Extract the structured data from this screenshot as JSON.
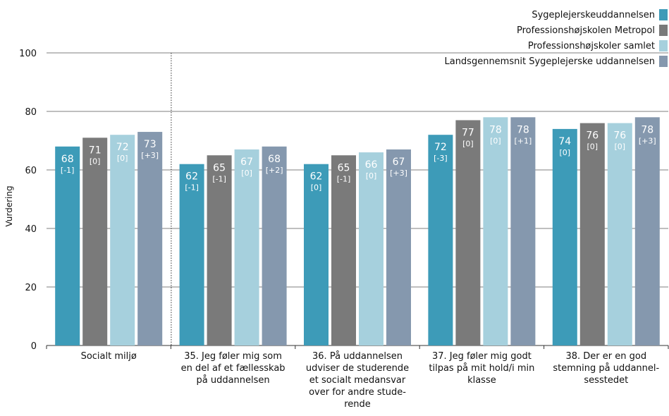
{
  "chart_data": {
    "type": "bar",
    "ylabel": "Vurdering",
    "ylim": [
      0,
      100
    ],
    "yticks": [
      0,
      20,
      40,
      60,
      80,
      100
    ],
    "grid": true,
    "legend_position": "top-right",
    "categories": [
      [
        "Socialt miljø"
      ],
      [
        "35. Jeg føler mig som",
        "en del af et fællesskab",
        "på uddannelsen"
      ],
      [
        "36. På uddannelsen",
        "udviser de studerende",
        "et socialt medansvar",
        "over for andre stude-",
        "rende"
      ],
      [
        "37. Jeg føler mig godt",
        "tilpas på mit hold/i min",
        "klasse"
      ],
      [
        "38. Der er en god",
        "stemning på uddannel-",
        "sesstedet"
      ]
    ],
    "series": [
      {
        "name": "Sygeplejerskeuddannelsen",
        "color": "#3d9bb8",
        "values": [
          68,
          62,
          62,
          72,
          74
        ],
        "diffs": [
          "[-1]",
          "[-1]",
          "[0]",
          "[-3]",
          "[0]"
        ]
      },
      {
        "name": "Professionshøjskolen Metropol",
        "color": "#7a7a7a",
        "values": [
          71,
          65,
          65,
          77,
          76
        ],
        "diffs": [
          "[0]",
          "[-1]",
          "[-1]",
          "[0]",
          "[0]"
        ]
      },
      {
        "name": "Professionshøjskoler samlet",
        "color": "#a6d0dd",
        "values": [
          72,
          67,
          66,
          78,
          76
        ],
        "diffs": [
          "[0]",
          "[0]",
          "[0]",
          "[0]",
          "[0]"
        ]
      },
      {
        "name": "Landsgennemsnit Sygeplejerske uddannelsen",
        "color": "#8598ae",
        "values": [
          73,
          68,
          67,
          78,
          78
        ],
        "diffs": [
          "[+3]",
          "[+2]",
          "[+3]",
          "[+1]",
          "[+3]"
        ]
      }
    ]
  }
}
